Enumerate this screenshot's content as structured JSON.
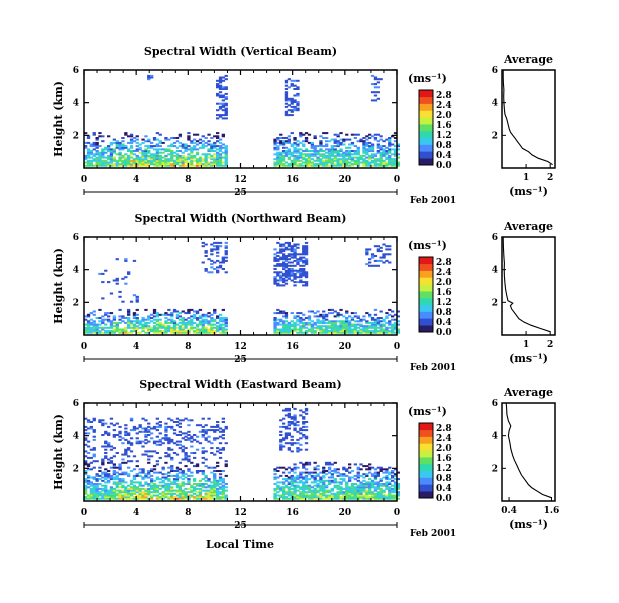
{
  "chart_data": {
    "type": "heatmap",
    "x_axis": {
      "label": "Local Time",
      "ticks": [
        "0",
        "4",
        "8",
        "12",
        "16",
        "20",
        "0"
      ],
      "range": [
        0,
        24
      ],
      "day_label": "25",
      "date_label": "Feb 2001"
    },
    "y_axis": {
      "label": "Height (km)",
      "ticks": [
        "2",
        "4",
        "6"
      ],
      "range": [
        0,
        6
      ]
    },
    "no_data_gap_hours": [
      11,
      14.5
    ],
    "colorbar": {
      "unit": "(ms⁻¹)",
      "ticks": [
        "0.0",
        "0.4",
        "0.8",
        "1.2",
        "1.6",
        "2.0",
        "2.4",
        "2.8"
      ],
      "range": [
        0,
        3.0
      ],
      "colors": [
        "#2a1b66",
        "#3050d0",
        "#4a8cff",
        "#38c8f0",
        "#30d8b0",
        "#60e060",
        "#c8f040",
        "#f8e030",
        "#f8a020",
        "#f05020",
        "#e01818"
      ]
    },
    "panels": [
      {
        "title": "Spectral Width (Vertical Beam)",
        "profile": {
          "title": "Average",
          "xlabel": "(ms⁻¹)",
          "xticks": [
            "1",
            "2"
          ],
          "xrange": [
            0,
            2.2
          ],
          "yticks": [
            "2",
            "4",
            "6"
          ],
          "yrange": [
            0,
            6
          ],
          "points": [
            [
              2.1,
              0.2
            ],
            [
              1.9,
              0.4
            ],
            [
              1.5,
              0.6
            ],
            [
              1.25,
              0.8
            ],
            [
              1.1,
              1.0
            ],
            [
              0.85,
              1.2
            ],
            [
              0.75,
              1.4
            ],
            [
              0.65,
              1.6
            ],
            [
              0.55,
              1.8
            ],
            [
              0.45,
              2.0
            ],
            [
              0.35,
              2.2
            ],
            [
              0.3,
              2.4
            ],
            [
              0.25,
              2.7
            ],
            [
              0.2,
              3.0
            ],
            [
              0.12,
              3.3
            ],
            [
              0.1,
              3.6
            ],
            [
              0.08,
              4.0
            ],
            [
              0.07,
              4.4
            ],
            [
              0.08,
              4.8
            ],
            [
              0.06,
              5.2
            ],
            [
              0.05,
              5.6
            ],
            [
              0.05,
              6.0
            ]
          ]
        }
      },
      {
        "title": "Spectral Width (Northward Beam)",
        "profile": {
          "title": "Average",
          "xlabel": "(ms⁻¹)",
          "xticks": [
            "1",
            "2"
          ],
          "xrange": [
            0,
            2.2
          ],
          "yticks": [
            "2",
            "4",
            "6"
          ],
          "yrange": [
            0,
            6
          ],
          "points": [
            [
              2.0,
              0.2
            ],
            [
              1.6,
              0.4
            ],
            [
              1.2,
              0.6
            ],
            [
              0.9,
              0.8
            ],
            [
              0.7,
              1.0
            ],
            [
              0.55,
              1.3
            ],
            [
              0.4,
              1.6
            ],
            [
              0.35,
              1.8
            ],
            [
              0.45,
              1.95
            ],
            [
              0.25,
              2.1
            ],
            [
              0.2,
              2.4
            ],
            [
              0.15,
              2.8
            ],
            [
              0.12,
              3.2
            ],
            [
              0.1,
              3.6
            ],
            [
              0.09,
              4.0
            ],
            [
              0.1,
              4.4
            ],
            [
              0.08,
              4.8
            ],
            [
              0.06,
              5.4
            ],
            [
              0.05,
              6.0
            ]
          ]
        }
      },
      {
        "title": "Spectral Width (Eastward Beam)",
        "profile": {
          "title": "Average",
          "xlabel": "(ms⁻¹)",
          "xticks": [
            "0.4",
            "1.6"
          ],
          "xrange": [
            0.2,
            1.7
          ],
          "yticks": [
            "2",
            "4",
            "6"
          ],
          "yrange": [
            0,
            6
          ],
          "points": [
            [
              1.6,
              0.2
            ],
            [
              1.35,
              0.4
            ],
            [
              1.2,
              0.6
            ],
            [
              1.05,
              0.8
            ],
            [
              0.95,
              1.0
            ],
            [
              0.85,
              1.3
            ],
            [
              0.75,
              1.6
            ],
            [
              0.68,
              1.9
            ],
            [
              0.62,
              2.2
            ],
            [
              0.55,
              2.5
            ],
            [
              0.5,
              2.8
            ],
            [
              0.45,
              3.2
            ],
            [
              0.42,
              3.6
            ],
            [
              0.38,
              4.0
            ],
            [
              0.4,
              4.3
            ],
            [
              0.45,
              4.6
            ],
            [
              0.38,
              4.9
            ],
            [
              0.34,
              5.3
            ],
            [
              0.33,
              5.7
            ],
            [
              0.32,
              6.0
            ]
          ]
        }
      }
    ]
  }
}
